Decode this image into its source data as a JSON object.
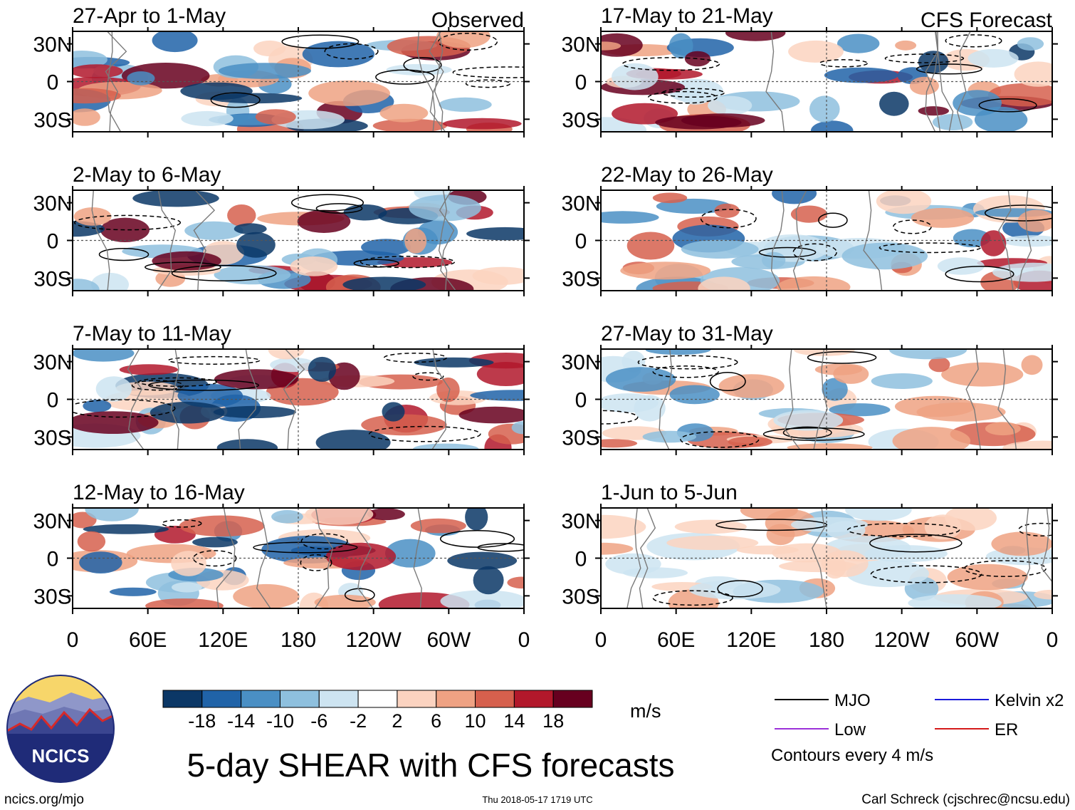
{
  "chart_data": {
    "type": "heatmap",
    "title": "5-day SHEAR with CFS forecasts",
    "units": "m/s",
    "contour_note": "Contours every 4 m/s",
    "columns": [
      {
        "label": "Observed",
        "panels": [
          "27-Apr to 1-May",
          "2-May to 6-May",
          "7-May to 11-May",
          "12-May to 16-May"
        ]
      },
      {
        "label": "CFS Forecast",
        "panels": [
          "17-May to 21-May",
          "22-May to 26-May",
          "27-May to 31-May",
          "1-Jun to 5-Jun"
        ]
      }
    ],
    "lon_ticks": [
      "0",
      "60E",
      "120E",
      "180",
      "120W",
      "60W",
      "0"
    ],
    "lat_ticks": [
      "30N",
      "0",
      "30S"
    ],
    "lon_range": [
      0,
      360
    ],
    "lat_range": [
      -40,
      40
    ],
    "colorbar": {
      "ticks": [
        "-18",
        "-14",
        "-10",
        "-6",
        "-2",
        "2",
        "6",
        "10",
        "14",
        "18"
      ],
      "colors": [
        "#0b3766",
        "#2063a8",
        "#4a8fc4",
        "#8ec0de",
        "#cde4f1",
        "#ffffff",
        "#fbd3c0",
        "#efa283",
        "#d6604d",
        "#b2182b",
        "#67001f"
      ]
    },
    "legend": [
      {
        "name": "MJO",
        "color": "#000000"
      },
      {
        "name": "Kelvin x2",
        "color": "#1a1adb"
      },
      {
        "name": "Low",
        "color": "#9b30d9"
      },
      {
        "name": "ER",
        "color": "#d41a1a"
      }
    ]
  },
  "footer": {
    "logo_text": "NCICS",
    "url": "ncics.org/mjo",
    "timestamp": "Thu 2018-05-17 1719 UTC",
    "credit": "Carl Schreck (cjschrec@ncsu.edu)"
  }
}
